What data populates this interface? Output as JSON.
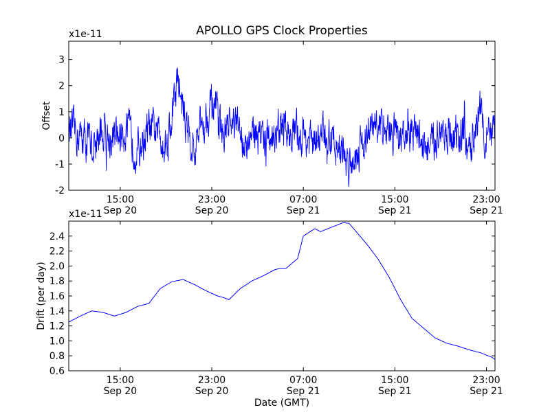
{
  "title": "APOLLO GPS Clock Properties",
  "colors": {
    "line": "#0000ff",
    "axes": "#000000",
    "background": "#ffffff"
  },
  "chart_data": [
    {
      "type": "line",
      "title": "APOLLO GPS Clock Properties",
      "ylabel": "Offset",
      "xlabel": "",
      "y_multiplier": "x1e-11",
      "ylim": [
        -2,
        3.7
      ],
      "xlim": [
        "Sep 20 10:30",
        "Sep 21 23:45"
      ],
      "x_ticks": [
        {
          "time": "15:00",
          "date": "Sep 20"
        },
        {
          "time": "23:00",
          "date": "Sep 20"
        },
        {
          "time": "07:00",
          "date": "Sep 21"
        },
        {
          "time": "15:00",
          "date": "Sep 21"
        },
        {
          "time": "23:00",
          "date": "Sep 21"
        }
      ],
      "y_ticks": [
        "3",
        "2",
        "1",
        "0",
        "-1",
        "-2"
      ],
      "grid": false,
      "series": [
        {
          "x": [
            "Sep 20 10:30",
            "Sep 20 11:30",
            "Sep 20 12:30",
            "Sep 20 13:30",
            "Sep 20 14:30",
            "Sep 20 15:30",
            "Sep 20 16:30",
            "Sep 20 17:30",
            "Sep 20 18:30",
            "Sep 20 19:00",
            "Sep 20 19:30",
            "Sep 20 20:00",
            "Sep 20 20:30",
            "Sep 20 21:00",
            "Sep 20 21:30",
            "Sep 20 22:00",
            "Sep 20 22:30",
            "Sep 20 23:00",
            "Sep 21 00:00",
            "Sep 21 01:00",
            "Sep 21 02:00",
            "Sep 21 03:00",
            "Sep 21 04:00",
            "Sep 21 05:00",
            "Sep 21 06:00",
            "Sep 21 07:00",
            "Sep 21 08:00",
            "Sep 21 09:00",
            "Sep 21 10:00",
            "Sep 21 11:00",
            "Sep 21 12:00",
            "Sep 21 13:00",
            "Sep 21 14:00",
            "Sep 21 15:00",
            "Sep 21 16:00",
            "Sep 21 17:00",
            "Sep 21 18:00",
            "Sep 21 19:00",
            "Sep 21 20:00",
            "Sep 21 21:00",
            "Sep 21 21:30",
            "Sep 21 22:00",
            "Sep 21 22:30",
            "Sep 21 23:00",
            "Sep 21 23:45"
          ],
          "values": [
            0.3,
            0.1,
            -0.3,
            0.2,
            -0.1,
            0.4,
            -0.5,
            0.3,
            0.2,
            -0.3,
            0.8,
            2.2,
            1.0,
            0.2,
            -0.6,
            0.4,
            0.9,
            1.3,
            0.0,
            0.5,
            -0.2,
            0.3,
            -0.1,
            0.4,
            0.2,
            0.1,
            -0.3,
            0.2,
            -0.2,
            -1.0,
            -0.2,
            0.3,
            0.5,
            0.2,
            -0.1,
            0.3,
            -0.6,
            0.4,
            0.1,
            0.2,
            -0.8,
            0.6,
            1.2,
            0.0,
            0.1
          ]
        }
      ]
    },
    {
      "type": "line",
      "title": "",
      "ylabel": "Drift (per day)",
      "xlabel": "Date (GMT)",
      "y_multiplier": "x1e-11",
      "ylim": [
        0.6,
        2.6
      ],
      "xlim": [
        "Sep 20 10:30",
        "Sep 21 23:45"
      ],
      "x_ticks": [
        {
          "time": "15:00",
          "date": "Sep 20"
        },
        {
          "time": "23:00",
          "date": "Sep 20"
        },
        {
          "time": "07:00",
          "date": "Sep 21"
        },
        {
          "time": "15:00",
          "date": "Sep 21"
        },
        {
          "time": "23:00",
          "date": "Sep 21"
        }
      ],
      "y_ticks": [
        "2.4",
        "2.2",
        "2.0",
        "1.8",
        "1.6",
        "1.4",
        "1.2",
        "1.0",
        "0.8",
        "0.6"
      ],
      "grid": false,
      "series": [
        {
          "x": [
            "Sep 20 10:30",
            "Sep 20 11:30",
            "Sep 20 12:30",
            "Sep 20 13:30",
            "Sep 20 14:30",
            "Sep 20 15:30",
            "Sep 20 16:30",
            "Sep 20 17:30",
            "Sep 20 18:30",
            "Sep 20 19:30",
            "Sep 20 20:30",
            "Sep 20 21:30",
            "Sep 20 22:30",
            "Sep 20 23:30",
            "Sep 21 00:00",
            "Sep 21 00:30",
            "Sep 21 01:30",
            "Sep 21 02:30",
            "Sep 21 03:30",
            "Sep 21 04:30",
            "Sep 21 05:00",
            "Sep 21 05:30",
            "Sep 21 06:30",
            "Sep 21 07:00",
            "Sep 21 08:00",
            "Sep 21 08:30",
            "Sep 21 09:30",
            "Sep 21 10:30",
            "Sep 21 11:00",
            "Sep 21 11:30",
            "Sep 21 12:30",
            "Sep 21 13:30",
            "Sep 21 14:30",
            "Sep 21 15:30",
            "Sep 21 16:30",
            "Sep 21 17:30",
            "Sep 21 18:30",
            "Sep 21 19:30",
            "Sep 21 20:30",
            "Sep 21 21:30",
            "Sep 21 22:30",
            "Sep 21 23:30",
            "Sep 21 23:45"
          ],
          "values": [
            1.25,
            1.33,
            1.4,
            1.38,
            1.33,
            1.38,
            1.46,
            1.5,
            1.7,
            1.79,
            1.82,
            1.75,
            1.67,
            1.6,
            1.58,
            1.55,
            1.7,
            1.8,
            1.87,
            1.95,
            1.97,
            1.97,
            2.1,
            2.4,
            2.5,
            2.46,
            2.52,
            2.58,
            2.57,
            2.48,
            2.3,
            2.1,
            1.85,
            1.55,
            1.3,
            1.17,
            1.04,
            0.97,
            0.93,
            0.88,
            0.84,
            0.78,
            0.75
          ]
        }
      ]
    }
  ]
}
